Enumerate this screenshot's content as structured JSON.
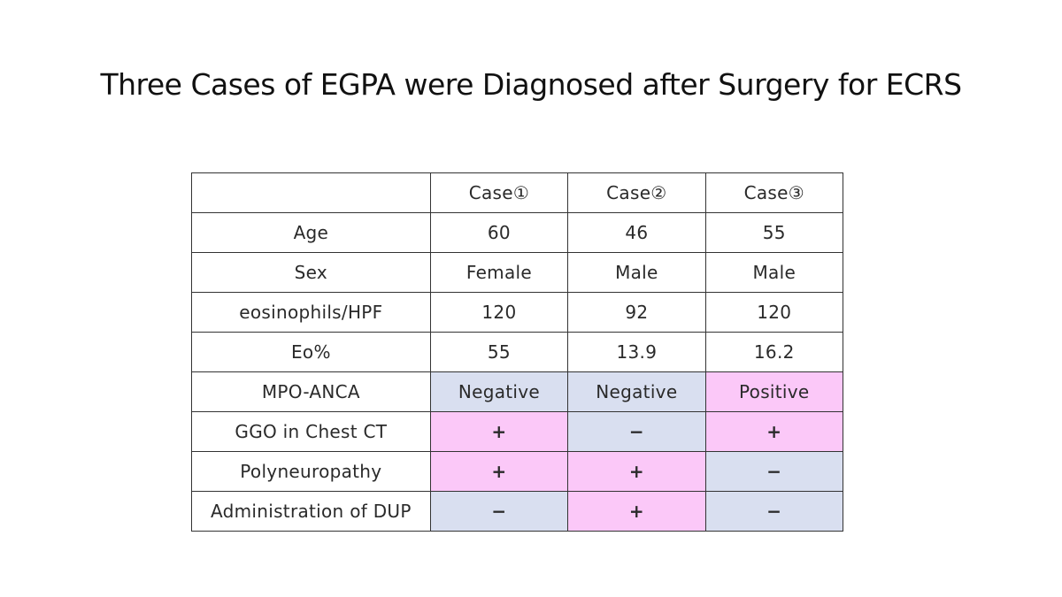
{
  "title": "Three Cases of EGPA were Diagnosed after Surgery for ECRS",
  "colors": {
    "negative_cell": "#d9dff0",
    "positive_cell": "#fbc8f8"
  },
  "table": {
    "headers": [
      "",
      "Case①",
      "Case②",
      "Case③"
    ],
    "rows": [
      {
        "label": "Age",
        "values": [
          "60",
          "46",
          "55"
        ],
        "shade": [
          "",
          "",
          ""
        ]
      },
      {
        "label": "Sex",
        "values": [
          "Female",
          "Male",
          "Male"
        ],
        "shade": [
          "",
          "",
          ""
        ]
      },
      {
        "label": "eosinophils/HPF",
        "values": [
          "120",
          "92",
          "120"
        ],
        "shade": [
          "",
          "",
          ""
        ]
      },
      {
        "label": "Eo%",
        "values": [
          "55",
          "13.9",
          "16.2"
        ],
        "shade": [
          "",
          "",
          ""
        ]
      },
      {
        "label": "MPO-ANCA",
        "values": [
          "Negative",
          "Negative",
          "Positive"
        ],
        "shade": [
          "neg",
          "neg",
          "pos"
        ]
      },
      {
        "label": "GGO in Chest CT",
        "values": [
          "+",
          "−",
          "+"
        ],
        "shade": [
          "pos",
          "neg",
          "pos"
        ]
      },
      {
        "label": "Polyneuropathy",
        "values": [
          "+",
          "+",
          "−"
        ],
        "shade": [
          "pos",
          "pos",
          "neg"
        ]
      },
      {
        "label": "Administration of DUP",
        "values": [
          "−",
          "+",
          "−"
        ],
        "shade": [
          "neg",
          "pos",
          "neg"
        ]
      }
    ]
  }
}
